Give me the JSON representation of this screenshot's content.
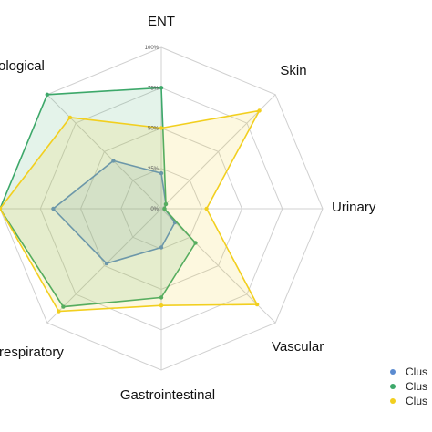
{
  "chart_data": {
    "type": "radar",
    "axes": [
      "ENT",
      "Skin",
      "Urinary",
      "Vascular",
      "Gastrointestinal",
      "respiratory",
      "",
      "ological"
    ],
    "ticks": [
      "0%",
      "25%",
      "50%",
      "75%",
      "100%"
    ],
    "range": [
      0,
      100
    ],
    "grid": true,
    "legend_position": "bottom-right",
    "series": [
      {
        "name": "Clus",
        "color": "#5B8BD0",
        "values": [
          22,
          4,
          2,
          12,
          24,
          48,
          67,
          42
        ]
      },
      {
        "name": "Clus",
        "color": "#3DA86A",
        "values": [
          75,
          4,
          2,
          30,
          55,
          86,
          100,
          100
        ]
      },
      {
        "name": "Clus",
        "color": "#F2CF1F",
        "values": [
          50,
          86,
          28,
          84,
          60,
          90,
          100,
          80
        ]
      }
    ]
  }
}
